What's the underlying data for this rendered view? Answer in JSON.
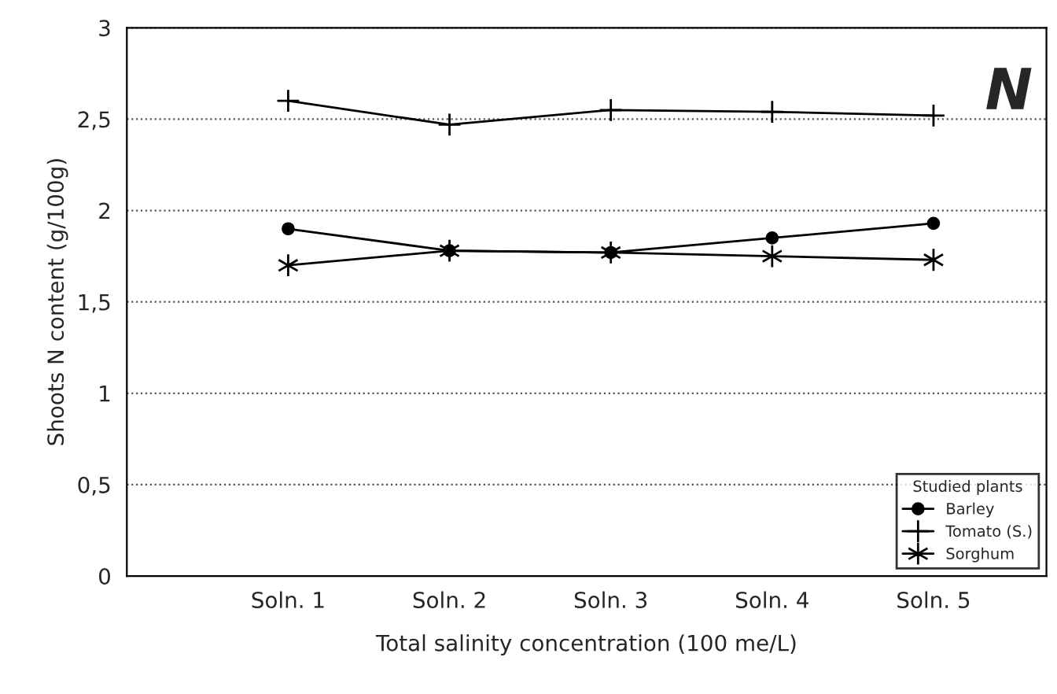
{
  "chart_data": {
    "type": "line",
    "xlabel": "Total salinity concentration (100 me/L)",
    "ylabel": "Shoots N content (g/100g)",
    "categories": [
      "Soln. 1",
      "Soln. 2",
      "Soln. 3",
      "Soln. 4",
      "Soln. 5"
    ],
    "series": [
      {
        "name": "Barley",
        "color": "#000000",
        "marker": "circle",
        "values": [
          1.9,
          1.78,
          1.77,
          1.85,
          1.93
        ]
      },
      {
        "name": "Tomato (S.)",
        "color": "#000000",
        "marker": "plus",
        "values": [
          2.6,
          2.47,
          2.55,
          2.54,
          2.52
        ]
      },
      {
        "name": "Sorghum",
        "color": "#000000",
        "marker": "cross",
        "values": [
          1.7,
          1.78,
          1.77,
          1.75,
          1.73
        ]
      }
    ],
    "ylim": [
      0,
      3
    ],
    "yticks": [
      0,
      {
        "value": 0.5,
        "label": "0,5"
      },
      1,
      {
        "value": 1.5,
        "label": "1,5"
      },
      2,
      {
        "value": 2.5,
        "label": "2,5"
      },
      3
    ],
    "grid": "y",
    "legend": "bottom right",
    "legend_title": "Studied plants",
    "line_style": "solid",
    "annotations": [
      "N"
    ]
  }
}
